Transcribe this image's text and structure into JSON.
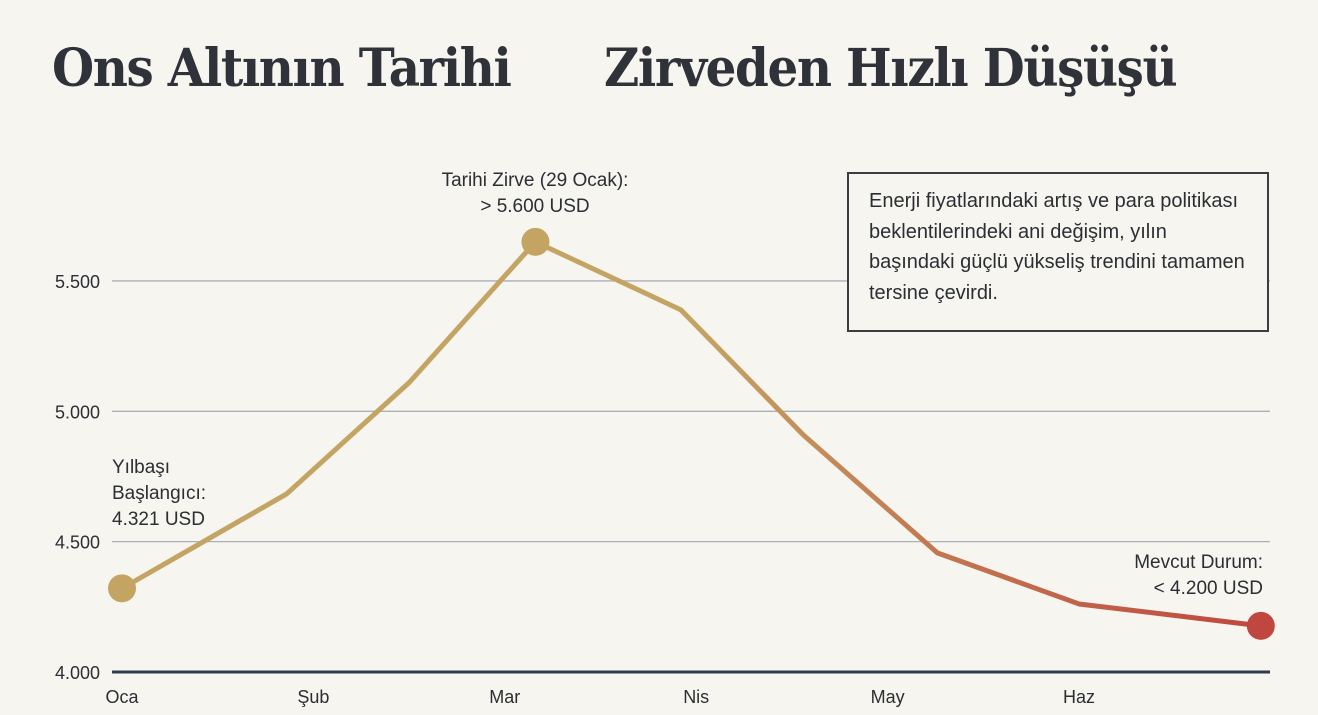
{
  "title": {
    "left": "Ons Altının Tarihi",
    "right": "Zirveden Hızlı Düşüşü"
  },
  "note": "Enerji fiyatlarındaki artış ve para politikası beklentilerindeki ani değişim, yılın başındaki güçlü yükseliş trendini tamamen tersine çevirdi.",
  "chart_data": {
    "type": "line",
    "title": "Ons Altının Tarihi Zirveden Hızlı Düşüşü",
    "categories": [
      "Oca",
      "Şub",
      "Mar",
      "Nis",
      "May",
      "Haz"
    ],
    "yticks": [
      "4.000",
      "4.500",
      "5.000",
      "5.500"
    ],
    "ytick_values": [
      4000,
      4500,
      5000,
      5500
    ],
    "ylim": [
      4000,
      5650
    ],
    "grid": "horizontal",
    "series": [
      {
        "x": [
          0,
          0.86,
          1.5,
          2.16,
          2.92,
          3.56,
          4.26,
          5.0,
          5.95
        ],
        "values": [
          4321,
          4683,
          5110,
          5650,
          5389,
          4909,
          4457,
          4261,
          4177
        ]
      }
    ],
    "colors": {
      "start": "#c4a463",
      "end": "#c0473f",
      "axis": "#2f3a4a",
      "grid": "#a9b0ba"
    },
    "annotations": [
      {
        "point": 0,
        "lines": [
          "Yılbaşı",
          "Başlangıcı:",
          "4.321 USD"
        ]
      },
      {
        "point": 3,
        "lines": [
          "Tarihi Zirve (29 Ocak):",
          "> 5.600 USD"
        ]
      },
      {
        "point": 8,
        "lines": [
          "Mevcut Durum:",
          "< 4.200 USD"
        ]
      }
    ]
  }
}
